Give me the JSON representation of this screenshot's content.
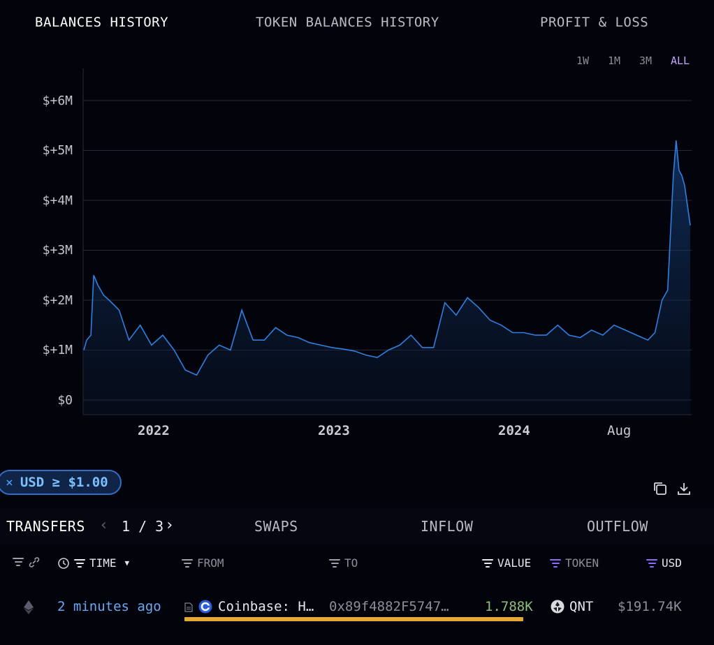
{
  "tabs": [
    "BALANCES HISTORY",
    "TOKEN BALANCES HISTORY",
    "PROFIT & LOSS"
  ],
  "ranges": [
    "1W",
    "1M",
    "3M",
    "ALL"
  ],
  "chart_data": {
    "type": "area",
    "y_tick_labels": [
      "$+6M",
      "$+5M",
      "$+4M",
      "$+3M",
      "$+2M",
      "$+1M",
      "$0"
    ],
    "x_tick_labels": [
      "2022",
      "2023",
      "2024",
      "Aug"
    ],
    "ylim": [
      -0.3,
      6.3
    ],
    "x_unit": "months since start of timeline",
    "x": [
      0,
      0.2,
      0.5,
      0.7,
      1.0,
      1.4,
      1.8,
      2.5,
      3.2,
      4.0,
      4.8,
      5.6,
      6.4,
      7.2,
      8.0,
      8.8,
      9.6,
      10.4,
      11.2,
      12.0,
      12.8,
      13.6,
      14.4,
      15.2,
      16.0,
      16.8,
      17.6,
      18.4,
      19.2,
      20.0,
      20.8,
      21.6,
      22.4,
      23.2,
      24.0,
      24.8,
      25.6,
      26.4,
      27.2,
      28.0,
      28.8,
      29.6,
      30.4,
      31.2,
      32.0,
      32.8,
      33.6,
      34.4,
      35.2,
      36.0,
      36.8,
      37.6,
      38.4,
      39.2,
      40.0,
      40.5,
      41.0,
      41.4,
      41.8,
      42.0,
      42.2,
      42.4,
      42.6,
      42.8,
      43.0
    ],
    "values": [
      1.0,
      1.2,
      1.3,
      2.5,
      2.3,
      2.1,
      2.0,
      1.8,
      1.2,
      1.5,
      1.1,
      1.3,
      1.0,
      0.6,
      0.5,
      0.9,
      1.1,
      1.0,
      1.8,
      1.2,
      1.2,
      1.45,
      1.3,
      1.25,
      1.15,
      1.1,
      1.05,
      1.02,
      0.98,
      0.9,
      0.85,
      1.0,
      1.1,
      1.3,
      1.05,
      1.05,
      1.95,
      1.7,
      2.05,
      1.85,
      1.6,
      1.5,
      1.35,
      1.35,
      1.3,
      1.3,
      1.5,
      1.3,
      1.25,
      1.4,
      1.3,
      1.5,
      1.4,
      1.3,
      1.2,
      1.35,
      2.0,
      2.2,
      4.5,
      5.2,
      4.6,
      4.5,
      4.3,
      3.9,
      3.5
    ]
  },
  "filter_pill": {
    "close": "×",
    "label": "USD ≥ $1.00"
  },
  "subtabs": {
    "transfers": "TRANSFERS",
    "page": "1 / 3",
    "swaps": "SWAPS",
    "inflow": "INFLOW",
    "outflow": "OUTFLOW"
  },
  "columns": {
    "time": "TIME",
    "from": "FROM",
    "to": "TO",
    "value": "VALUE",
    "token": "TOKEN",
    "usd": "USD"
  },
  "rows": [
    {
      "time": "2 minutes ago",
      "from": "Coinbase: H…",
      "to": "0x89f4882F5747…",
      "value": "1.788K",
      "token": "QNT",
      "usd": "$191.74K"
    }
  ],
  "colors": {
    "accent": "#2f7fe0",
    "value_positive": "#8fbf7a",
    "highlight": "#e4a935",
    "active_range": "#c7a6ff"
  }
}
